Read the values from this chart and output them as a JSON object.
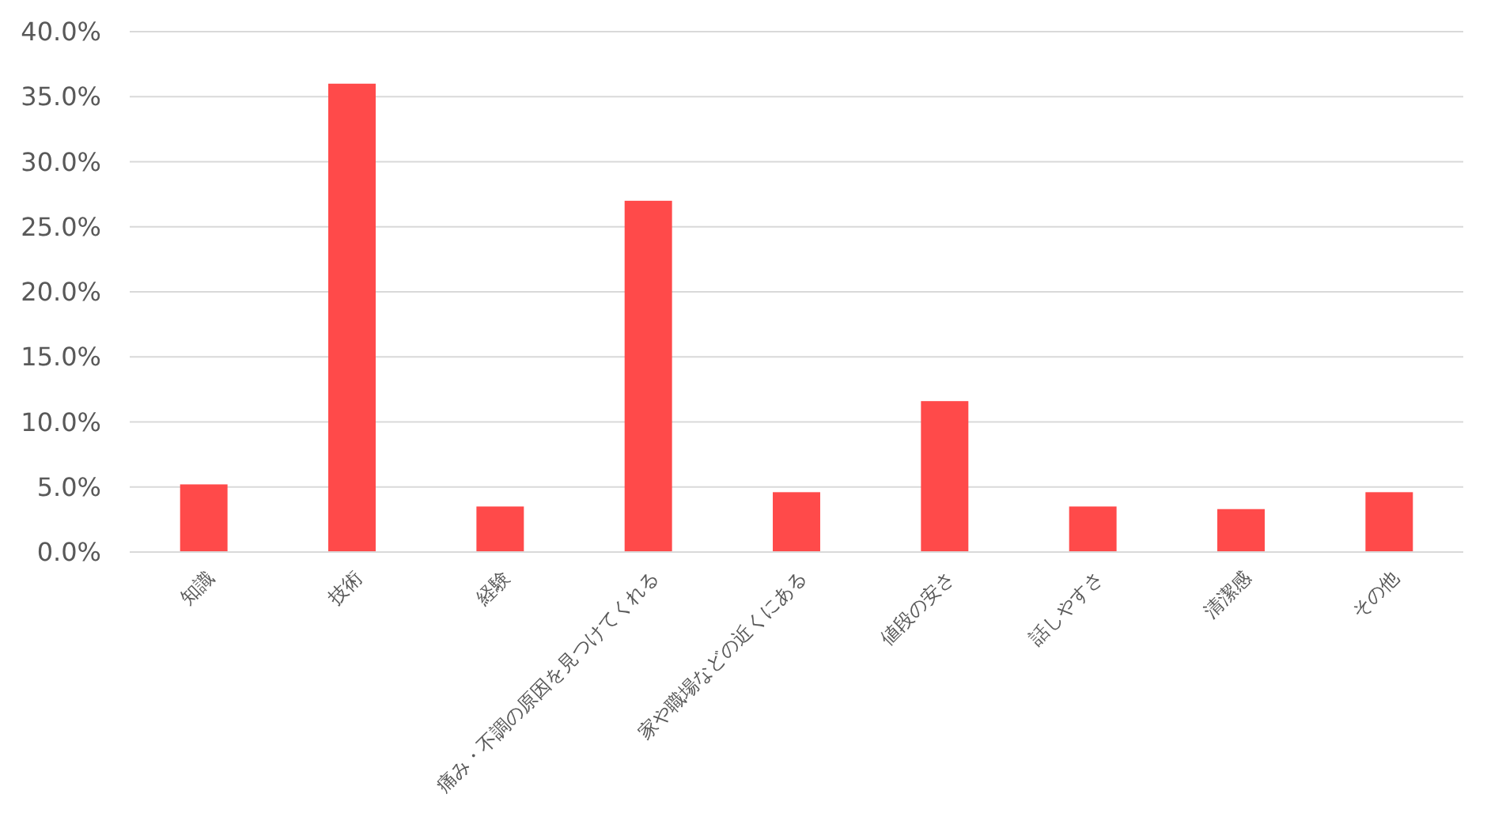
{
  "chart_data": {
    "type": "bar",
    "categories": [
      "知識",
      "技術",
      "経験",
      "痛み・不調の原因を見つけてくれる",
      "家や職場などの近くにある",
      "値段の安さ",
      "話しやすさ",
      "清潔感",
      "その他"
    ],
    "values": [
      5.2,
      36.0,
      3.5,
      27.0,
      4.6,
      11.6,
      3.5,
      3.3,
      4.6
    ],
    "color": "#ff4a4a",
    "ylim": [
      0,
      40
    ],
    "yticks": [
      {
        "value": 0,
        "label": "0.0%"
      },
      {
        "value": 5,
        "label": "5.0%"
      },
      {
        "value": 10,
        "label": "10.0%"
      },
      {
        "value": 15,
        "label": "15.0%"
      },
      {
        "value": 20,
        "label": "20.0%"
      },
      {
        "value": 25,
        "label": "25.0%"
      },
      {
        "value": 30,
        "label": "30.0%"
      },
      {
        "value": 35,
        "label": "35.0%"
      },
      {
        "value": 40,
        "label": "40.0%"
      }
    ],
    "grid": "y"
  }
}
